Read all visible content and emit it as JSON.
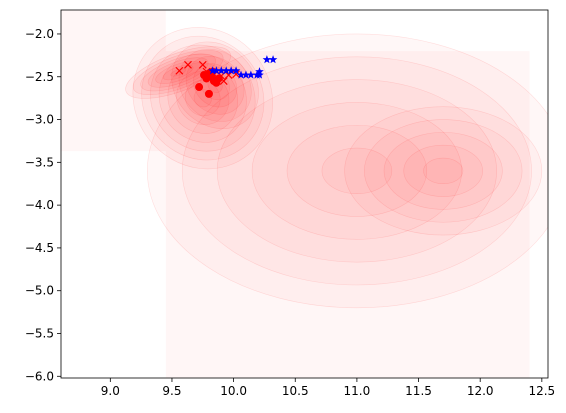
{
  "chart_data": {
    "type": "scatter",
    "title": "",
    "xlabel": "",
    "ylabel": "",
    "xlim": [
      8.6,
      12.55
    ],
    "ylim": [
      -6.02,
      -1.72
    ],
    "grid": false,
    "legend": "none",
    "x_ticks": [
      {
        "value": 9.0,
        "label": "9.0"
      },
      {
        "value": 9.5,
        "label": "9.5"
      },
      {
        "value": 10.0,
        "label": "10.0"
      },
      {
        "value": 10.5,
        "label": "10.5"
      },
      {
        "value": 11.0,
        "label": "11.0"
      },
      {
        "value": 11.5,
        "label": "11.5"
      },
      {
        "value": 12.0,
        "label": "12.0"
      },
      {
        "value": 12.5,
        "label": "12.5"
      }
    ],
    "y_ticks": [
      {
        "value": -2.0,
        "label": "−2.0"
      },
      {
        "value": -2.5,
        "label": "−2.5"
      },
      {
        "value": -3.0,
        "label": "−3.0"
      },
      {
        "value": -3.5,
        "label": "−3.5"
      },
      {
        "value": -4.0,
        "label": "−4.0"
      },
      {
        "value": -4.5,
        "label": "−4.5"
      },
      {
        "value": -5.0,
        "label": "−5.0"
      },
      {
        "value": -5.5,
        "label": "−5.5"
      },
      {
        "value": -6.0,
        "label": "−6.0"
      }
    ],
    "density_color": "#ff0000",
    "series": [
      {
        "marker": "x",
        "color": "#ff0000",
        "points": [
          [
            9.56,
            -2.43
          ],
          [
            9.63,
            -2.36
          ],
          [
            9.75,
            -2.36
          ],
          [
            9.78,
            -2.44
          ],
          [
            9.84,
            -2.47
          ],
          [
            9.9,
            -2.49
          ],
          [
            9.96,
            -2.48
          ],
          [
            10.02,
            -2.47
          ],
          [
            9.92,
            -2.55
          ]
        ]
      },
      {
        "marker": "circle",
        "color": "#ff0000",
        "points": [
          [
            9.76,
            -2.48
          ],
          [
            9.78,
            -2.52
          ],
          [
            9.8,
            -2.46
          ],
          [
            9.82,
            -2.5
          ],
          [
            9.84,
            -2.55
          ],
          [
            9.86,
            -2.57
          ],
          [
            9.88,
            -2.52
          ],
          [
            9.72,
            -2.62
          ],
          [
            9.8,
            -2.7
          ],
          [
            9.83,
            -2.44
          ]
        ]
      },
      {
        "marker": "star",
        "color": "#0000ff",
        "points": [
          [
            9.83,
            -2.43
          ],
          [
            9.86,
            -2.43
          ],
          [
            9.9,
            -2.43
          ],
          [
            9.94,
            -2.43
          ],
          [
            9.98,
            -2.43
          ],
          [
            10.02,
            -2.43
          ],
          [
            10.06,
            -2.48
          ],
          [
            10.1,
            -2.48
          ],
          [
            10.14,
            -2.48
          ],
          [
            10.19,
            -2.48
          ],
          [
            10.21,
            -2.44
          ],
          [
            10.21,
            -2.48
          ],
          [
            10.27,
            -2.3
          ],
          [
            10.32,
            -2.3
          ]
        ]
      }
    ]
  }
}
